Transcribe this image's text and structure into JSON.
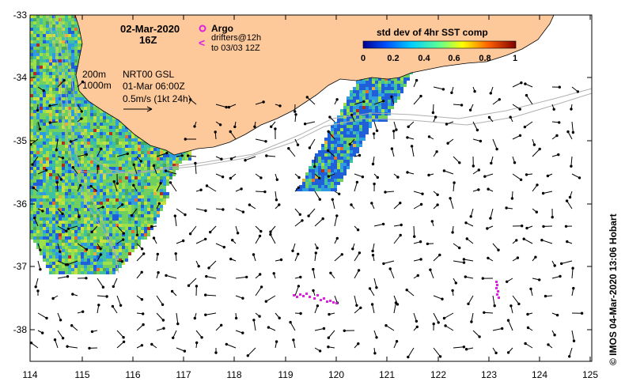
{
  "map": {
    "date": "02-Mar-2020",
    "hour": "16Z",
    "argo_label": "Argo",
    "drifters_label": "drifters@12h",
    "drifters_to": "to 03/03 12Z",
    "contour_200": "200m",
    "contour_1000": "1000m",
    "current_source": "NRT00 GSL",
    "current_time": "01-Mar 06:00Z",
    "vector_scale": "0.5m/s (1kt 24h)",
    "colorbar_title": "std dev of 4hr SST comp",
    "colorbar_ticks": [
      "0",
      "0.2",
      "0.4",
      "0.6",
      "0.8",
      "1"
    ],
    "credit": "©  IMOS 04-Mar-2020 13:06 Hobart",
    "lat_ticks": [
      "-33",
      "-34",
      "-35",
      "-36",
      "-37",
      "-38"
    ],
    "lon_ticks": [
      "114",
      "115",
      "116",
      "117",
      "118",
      "119",
      "120",
      "121",
      "122",
      "123",
      "124",
      "125"
    ],
    "colors": {
      "land": "#fdc89a",
      "argo_drifter": "#e020e0",
      "vector": "#000000",
      "contour": "#b0b0b0"
    }
  }
}
